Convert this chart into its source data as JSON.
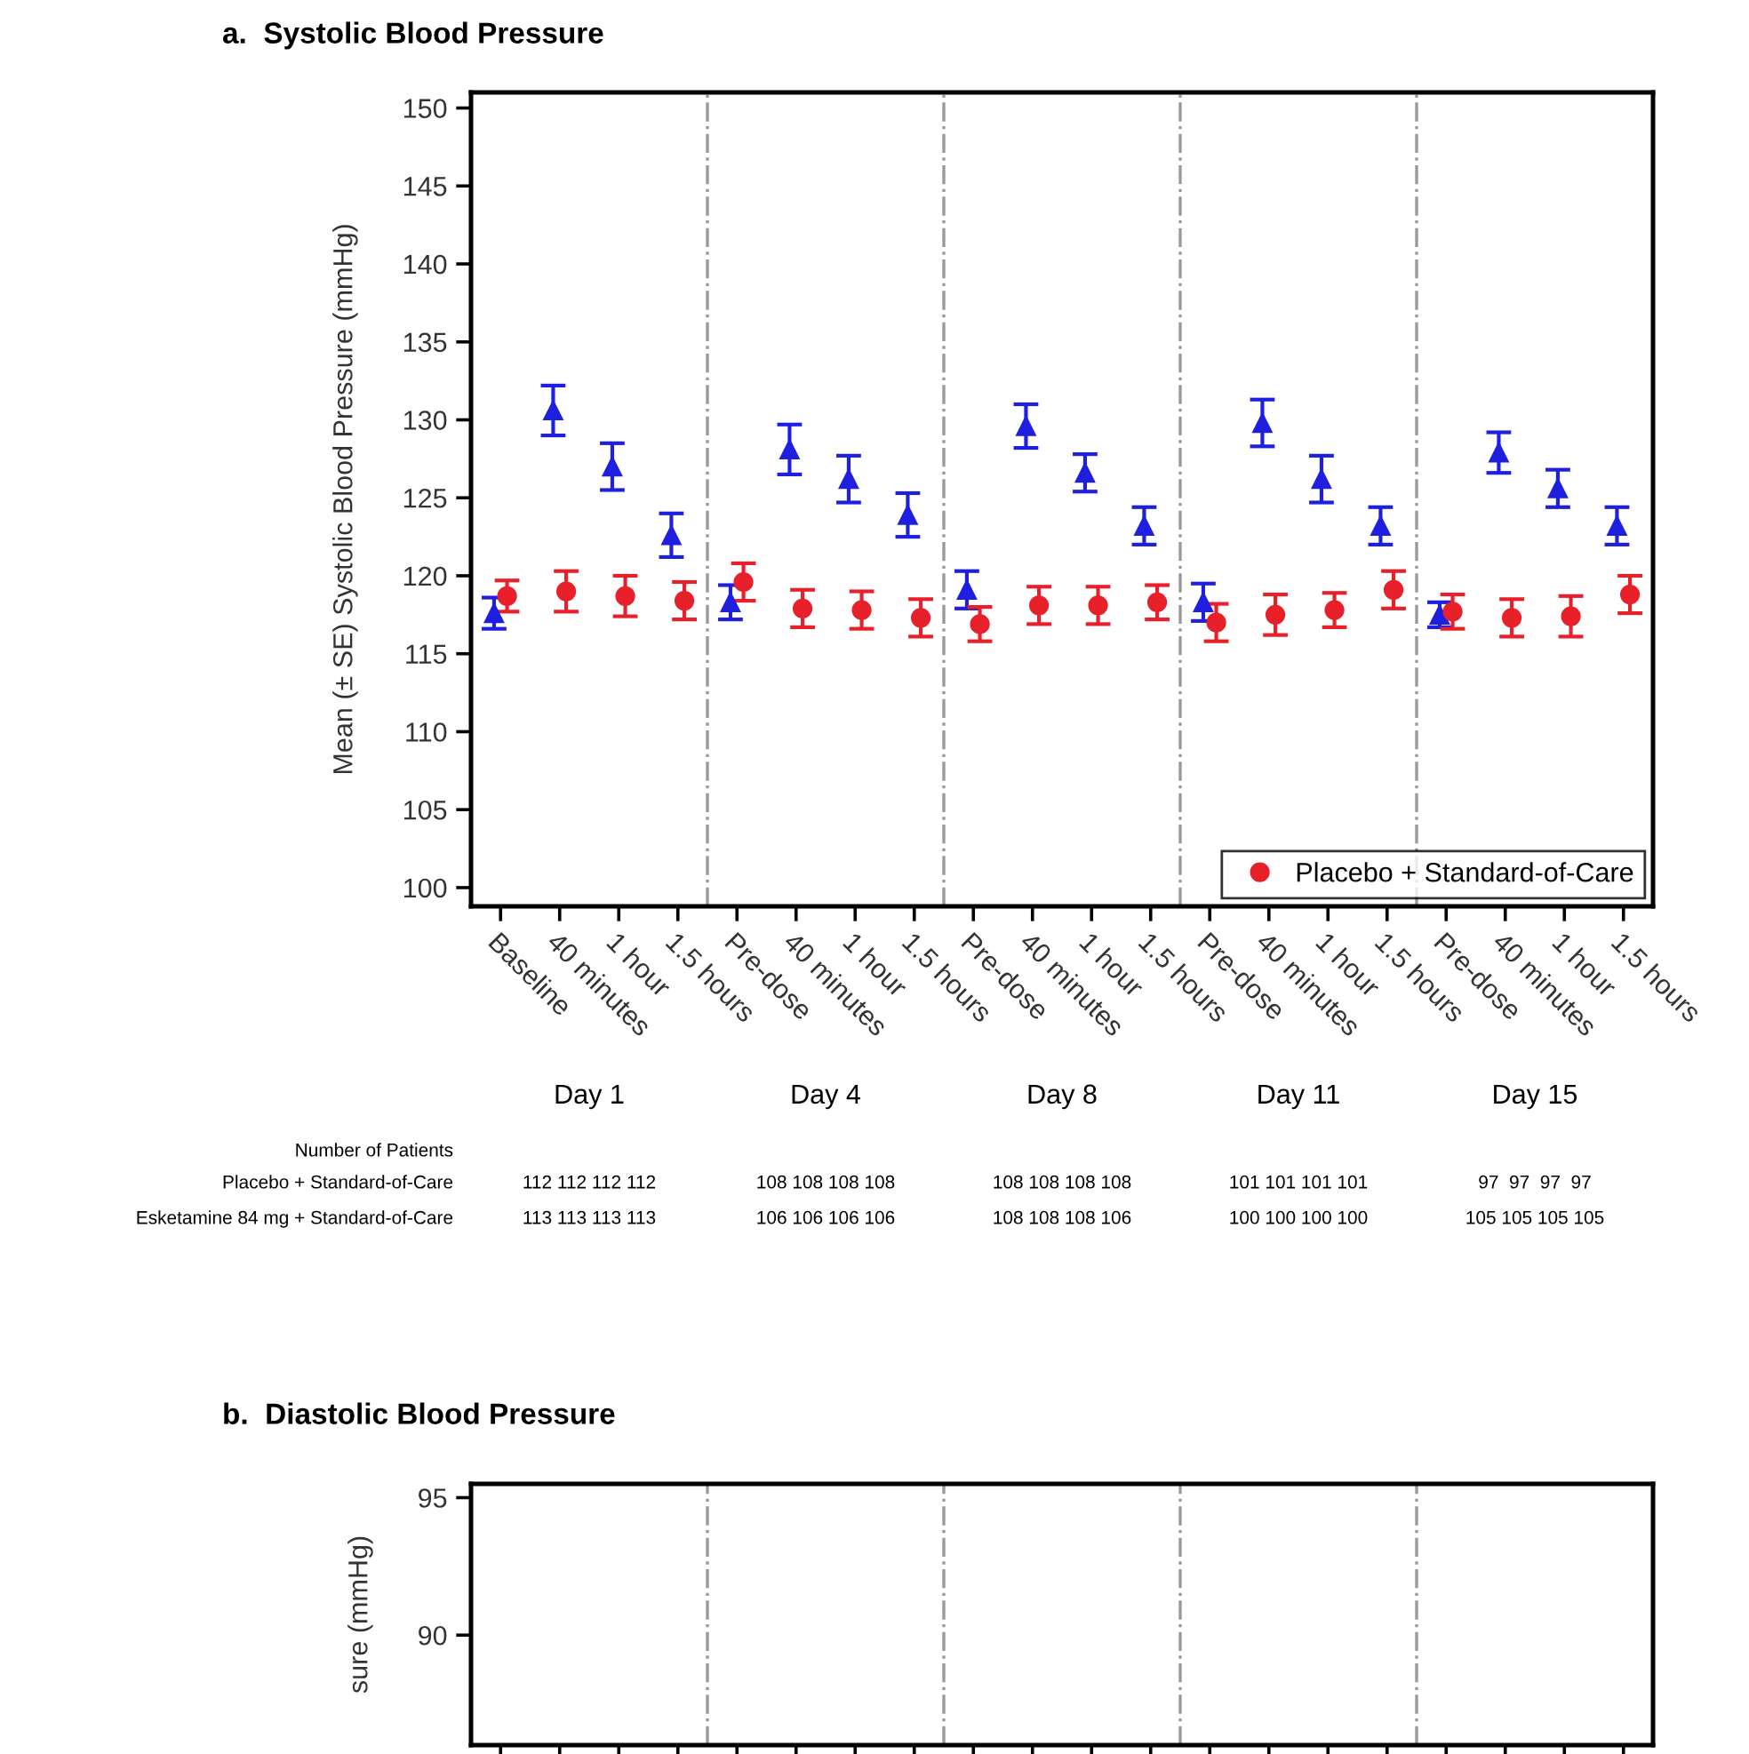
{
  "chart_data": [
    {
      "type": "scatter",
      "title": "a.  Systolic Blood Pressure",
      "ylabel": "Mean (± SE) Systolic Blood Pressure (mmHg)",
      "categories": [
        "Baseline",
        "40 minutes",
        "1 hour",
        "1.5 hours",
        "Pre-dose",
        "40 minutes",
        "1 hour",
        "1.5 hours",
        "Pre-dose",
        "40 minutes",
        "1 hour",
        "1.5 hours",
        "Pre-dose",
        "40 minutes",
        "1 hour",
        "1.5 hours",
        "Pre-dose",
        "40 minutes",
        "1 hour",
        "1.5 hours"
      ],
      "series": [
        {
          "color": "#1f1fe0",
          "marker": "triangle",
          "values": [
            117.6,
            130.6,
            127.0,
            122.6,
            118.3,
            128.1,
            126.2,
            123.9,
            119.1,
            129.6,
            126.6,
            123.2,
            118.3,
            129.8,
            126.2,
            123.2,
            117.5,
            127.9,
            125.6,
            123.2
          ],
          "errors": [
            1.0,
            1.6,
            1.5,
            1.4,
            1.1,
            1.6,
            1.5,
            1.4,
            1.2,
            1.4,
            1.2,
            1.2,
            1.2,
            1.5,
            1.5,
            1.2,
            0.8,
            1.3,
            1.2,
            1.2
          ]
        },
        {
          "name": "Placebo + Standard-of-Care",
          "color": "#e8202a",
          "marker": "circle",
          "values": [
            118.7,
            119.0,
            118.7,
            118.4,
            119.6,
            117.9,
            117.8,
            117.3,
            116.9,
            118.1,
            118.1,
            118.3,
            117.0,
            117.5,
            117.8,
            119.1,
            117.7,
            117.3,
            117.4,
            118.8
          ],
          "errors": [
            1.0,
            1.3,
            1.3,
            1.2,
            1.2,
            1.2,
            1.2,
            1.2,
            1.1,
            1.2,
            1.2,
            1.1,
            1.2,
            1.3,
            1.1,
            1.2,
            1.1,
            1.2,
            1.3,
            1.2
          ]
        }
      ],
      "ylim": [
        98.8,
        151
      ],
      "yticks": [
        100,
        105,
        110,
        115,
        120,
        125,
        130,
        135,
        140,
        145,
        150
      ],
      "grid": false,
      "legend": "bottom right",
      "annotations": [
        "Day 1",
        "Day 4",
        "Day 8",
        "Day 11",
        "Day 15",
        "Number of Patients",
        "Placebo + Standard-of-Care",
        "Esketamine 84 mg + Standard-of-Care",
        "112 112 112 112",
        "108 108 108 108",
        "108 108 108 108",
        "101 101 101 101",
        "97  97  97  97",
        "113 113 113 113",
        "106 106 106 106",
        "108 108 108 106",
        "100 100 100 100",
        "105 105 105 105"
      ]
    },
    {
      "type": "scatter",
      "title": "b.  Diastolic Blood Pressure",
      "ylabel": "sure (mmHg)",
      "categories": [
        null,
        null,
        null,
        null,
        null,
        null,
        null,
        null,
        null,
        null,
        null,
        null,
        null,
        null,
        null,
        null,
        null,
        null,
        null,
        null
      ],
      "ylim": [
        86,
        95.5
      ],
      "yticks": [
        90,
        95
      ],
      "grid": false,
      "tick_labels": "y"
    }
  ]
}
